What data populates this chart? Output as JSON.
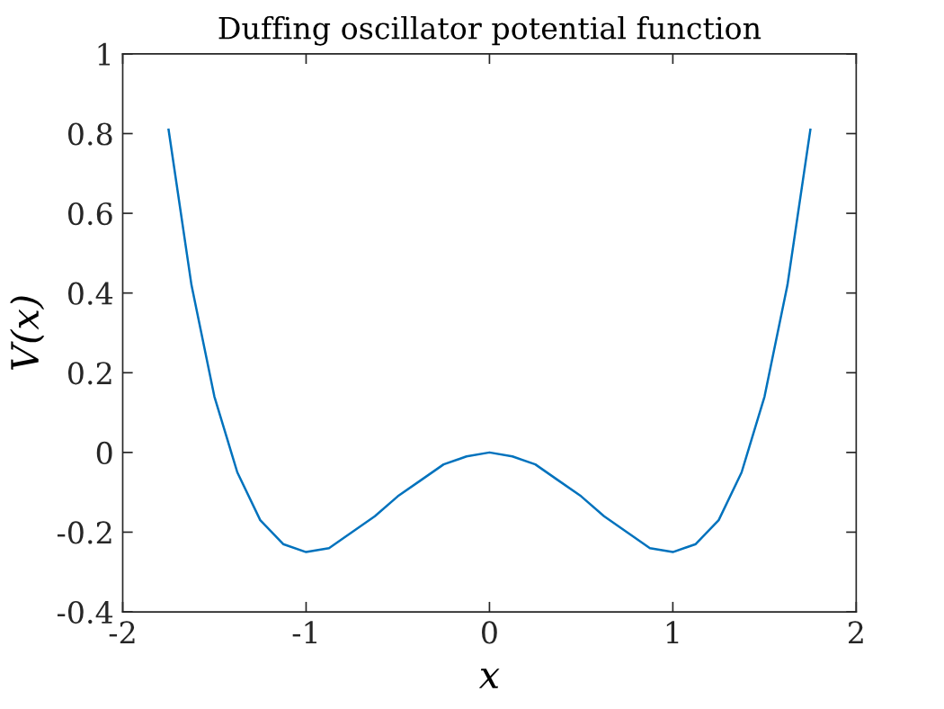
{
  "chart_data": {
    "type": "line",
    "title": "Duffing oscillator potential function",
    "xlabel": "x",
    "ylabel": "V(x)",
    "x": [
      -1.75,
      -1.625,
      -1.5,
      -1.375,
      -1.25,
      -1.125,
      -1,
      -0.875,
      -0.75,
      -0.625,
      -0.5,
      -0.375,
      -0.25,
      -0.125,
      0,
      0.125,
      0.25,
      0.375,
      0.5,
      0.625,
      0.75,
      0.875,
      1,
      1.125,
      1.25,
      1.375,
      1.5,
      1.625,
      1.75
    ],
    "series": [
      {
        "color": "#0072bd",
        "values": [
          0.81,
          0.42,
          0.14,
          -0.05,
          -0.17,
          -0.23,
          -0.25,
          -0.24,
          -0.2,
          -0.16,
          -0.11,
          -0.07,
          -0.03,
          -0.01,
          0,
          -0.01,
          -0.03,
          -0.07,
          -0.11,
          -0.16,
          -0.2,
          -0.24,
          -0.25,
          -0.23,
          -0.17,
          -0.05,
          0.14,
          0.42,
          0.81
        ]
      }
    ],
    "xlim": [
      -2,
      2
    ],
    "ylim": [
      -0.4,
      1
    ],
    "xticks": [
      -2,
      -1,
      0,
      1,
      2
    ],
    "yticks": [
      -0.4,
      -0.2,
      0,
      0.2,
      0.4,
      0.6,
      0.8,
      1
    ],
    "grid": false,
    "marker": "none",
    "line_style": "solid"
  }
}
